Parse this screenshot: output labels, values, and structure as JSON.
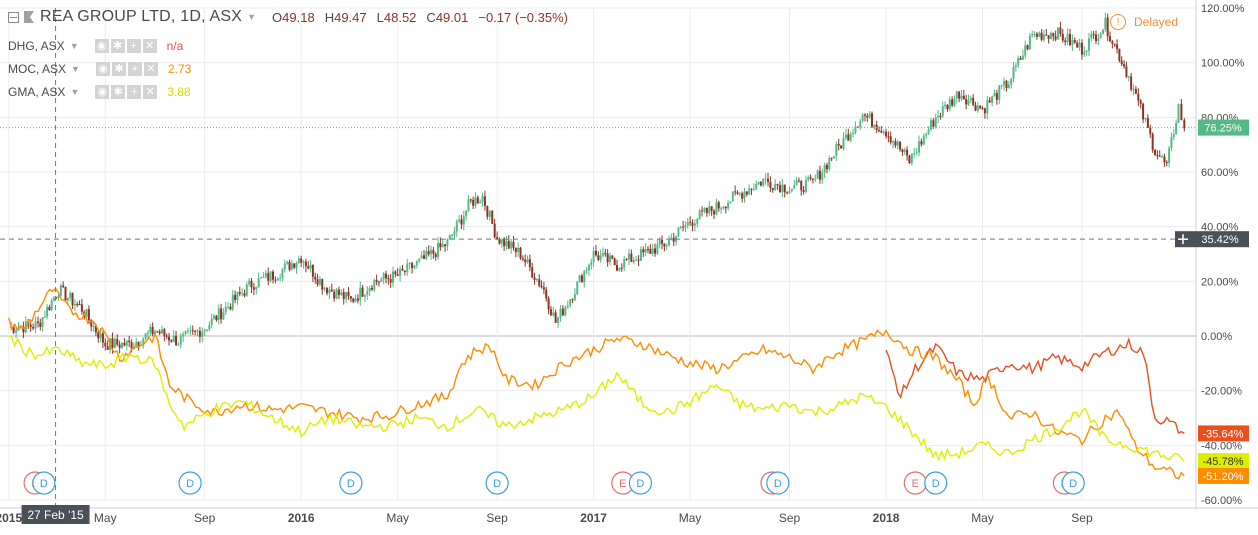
{
  "header": {
    "title": "REA GROUP LTD, 1D, ASX",
    "open_label": "O",
    "open": "49.18",
    "high_label": "H",
    "high": "49.47",
    "low_label": "L",
    "low": "48.52",
    "close_label": "C",
    "close": "49.01",
    "change": "−0.17 (−0.35%)",
    "delayed": "Delayed"
  },
  "legend": [
    {
      "symbol": "DHG, ASX",
      "value": "n/a",
      "color": "#d9534f"
    },
    {
      "symbol": "MOC, ASX",
      "value": "2.73",
      "color": "#ff8c00"
    },
    {
      "symbol": "GMA, ASX",
      "value": "3.88",
      "color": "#d8d800"
    }
  ],
  "crosshair": {
    "date": "27 Feb '15",
    "value": "35.42%"
  },
  "chart_data": {
    "type": "line",
    "title": "REA GROUP LTD, 1D, ASX",
    "y_unit": "%",
    "ylim": [
      -60,
      120
    ],
    "y_ticks": [
      "120.00%",
      "100.00%",
      "80.00%",
      "60.00%",
      "40.00%",
      "20.00%",
      "0.00%",
      "-20.00%",
      "-40.00%",
      "-60.00%"
    ],
    "x_ticks": [
      "2015",
      "May",
      "Sep",
      "2016",
      "May",
      "Sep",
      "2017",
      "May",
      "Sep",
      "2018",
      "May",
      "Sep"
    ],
    "grid": true,
    "series": [
      {
        "name": "REA GROUP LTD",
        "style": "candles",
        "color": "#53b987",
        "down_color": "#8a3324",
        "last_value": "76.25%",
        "points": [
          [
            2015.0,
            3
          ],
          [
            2015.1,
            4
          ],
          [
            2015.17,
            17
          ],
          [
            2015.25,
            10
          ],
          [
            2015.33,
            -3
          ],
          [
            2015.42,
            -3
          ],
          [
            2015.5,
            2
          ],
          [
            2015.58,
            -2
          ],
          [
            2015.67,
            3
          ],
          [
            2015.75,
            11
          ],
          [
            2015.83,
            19
          ],
          [
            2015.92,
            23
          ],
          [
            2016.0,
            29
          ],
          [
            2016.08,
            18
          ],
          [
            2016.17,
            13
          ],
          [
            2016.25,
            20
          ],
          [
            2016.33,
            22
          ],
          [
            2016.42,
            28
          ],
          [
            2016.5,
            34
          ],
          [
            2016.58,
            49
          ],
          [
            2016.62,
            51
          ],
          [
            2016.67,
            36
          ],
          [
            2016.75,
            30
          ],
          [
            2016.83,
            17
          ],
          [
            2016.87,
            5
          ],
          [
            2016.92,
            14
          ],
          [
            2017.0,
            30
          ],
          [
            2017.08,
            26
          ],
          [
            2017.17,
            30
          ],
          [
            2017.25,
            34
          ],
          [
            2017.33,
            42
          ],
          [
            2017.42,
            47
          ],
          [
            2017.5,
            52
          ],
          [
            2017.58,
            57
          ],
          [
            2017.67,
            54
          ],
          [
            2017.75,
            56
          ],
          [
            2017.83,
            68
          ],
          [
            2017.92,
            81
          ],
          [
            2018.0,
            75
          ],
          [
            2018.08,
            64
          ],
          [
            2018.17,
            80
          ],
          [
            2018.25,
            89
          ],
          [
            2018.33,
            83
          ],
          [
            2018.42,
            93
          ],
          [
            2018.5,
            110
          ],
          [
            2018.58,
            111
          ],
          [
            2018.67,
            105
          ],
          [
            2018.75,
            114
          ],
          [
            2018.83,
            95
          ],
          [
            2018.92,
            68
          ],
          [
            2018.96,
            62
          ],
          [
            2019.0,
            84
          ],
          [
            2019.02,
            76
          ]
        ]
      },
      {
        "name": "DHG, ASX",
        "color": "#e8501e",
        "last_value": "-35.64%",
        "points": [
          [
            2018.0,
            -6
          ],
          [
            2018.05,
            -22
          ],
          [
            2018.1,
            -12
          ],
          [
            2018.17,
            -4
          ],
          [
            2018.25,
            -14
          ],
          [
            2018.33,
            -16
          ],
          [
            2018.42,
            -10
          ],
          [
            2018.5,
            -12
          ],
          [
            2018.58,
            -8
          ],
          [
            2018.67,
            -11
          ],
          [
            2018.75,
            -6
          ],
          [
            2018.83,
            -3
          ],
          [
            2018.88,
            -6
          ],
          [
            2018.92,
            -30
          ],
          [
            2018.96,
            -31
          ],
          [
            2019.02,
            -35.6
          ]
        ]
      },
      {
        "name": "MOC, ASX",
        "color": "#ff8c00",
        "last_value": "-51.20%",
        "points": [
          [
            2015.0,
            5
          ],
          [
            2015.05,
            2
          ],
          [
            2015.1,
            10
          ],
          [
            2015.15,
            17
          ],
          [
            2015.2,
            10
          ],
          [
            2015.3,
            5
          ],
          [
            2015.38,
            -8
          ],
          [
            2015.45,
            -3
          ],
          [
            2015.5,
            0
          ],
          [
            2015.55,
            -18
          ],
          [
            2015.62,
            -24
          ],
          [
            2015.7,
            -28
          ],
          [
            2015.8,
            -25
          ],
          [
            2015.9,
            -27
          ],
          [
            2016.0,
            -26
          ],
          [
            2016.1,
            -28
          ],
          [
            2016.2,
            -30
          ],
          [
            2016.3,
            -29
          ],
          [
            2016.4,
            -25
          ],
          [
            2016.5,
            -22
          ],
          [
            2016.55,
            -10
          ],
          [
            2016.6,
            -5
          ],
          [
            2016.65,
            -4
          ],
          [
            2016.7,
            -16
          ],
          [
            2016.8,
            -18
          ],
          [
            2016.9,
            -10
          ],
          [
            2017.0,
            -5
          ],
          [
            2017.08,
            -1
          ],
          [
            2017.17,
            -3
          ],
          [
            2017.25,
            -7
          ],
          [
            2017.33,
            -10
          ],
          [
            2017.42,
            -12
          ],
          [
            2017.5,
            -9
          ],
          [
            2017.58,
            -5
          ],
          [
            2017.67,
            -8
          ],
          [
            2017.75,
            -12
          ],
          [
            2017.83,
            -6
          ],
          [
            2017.92,
            -2
          ],
          [
            2018.0,
            2
          ],
          [
            2018.08,
            -5
          ],
          [
            2018.17,
            -8
          ],
          [
            2018.25,
            -17
          ],
          [
            2018.3,
            -25
          ],
          [
            2018.35,
            -15
          ],
          [
            2018.42,
            -30
          ],
          [
            2018.5,
            -28
          ],
          [
            2018.58,
            -35
          ],
          [
            2018.67,
            -38
          ],
          [
            2018.75,
            -30
          ],
          [
            2018.8,
            -28
          ],
          [
            2018.85,
            -40
          ],
          [
            2018.92,
            -48
          ],
          [
            2019.0,
            -51
          ],
          [
            2019.02,
            -51.2
          ]
        ]
      },
      {
        "name": "GMA, ASX",
        "color": "#ddee00",
        "last_value": "-45.78%",
        "points": [
          [
            2015.0,
            0
          ],
          [
            2015.05,
            -5
          ],
          [
            2015.1,
            -7
          ],
          [
            2015.17,
            -5
          ],
          [
            2015.25,
            -10
          ],
          [
            2015.33,
            -11
          ],
          [
            2015.42,
            -7
          ],
          [
            2015.5,
            -10
          ],
          [
            2015.55,
            -25
          ],
          [
            2015.6,
            -33
          ],
          [
            2015.7,
            -27
          ],
          [
            2015.8,
            -24
          ],
          [
            2015.9,
            -30
          ],
          [
            2016.0,
            -35
          ],
          [
            2016.1,
            -30
          ],
          [
            2016.2,
            -33
          ],
          [
            2016.3,
            -33
          ],
          [
            2016.4,
            -30
          ],
          [
            2016.5,
            -33
          ],
          [
            2016.6,
            -27
          ],
          [
            2016.7,
            -33
          ],
          [
            2016.8,
            -30
          ],
          [
            2016.9,
            -27
          ],
          [
            2017.0,
            -22
          ],
          [
            2017.08,
            -14
          ],
          [
            2017.17,
            -25
          ],
          [
            2017.25,
            -28
          ],
          [
            2017.33,
            -24
          ],
          [
            2017.42,
            -18
          ],
          [
            2017.5,
            -25
          ],
          [
            2017.58,
            -27
          ],
          [
            2017.67,
            -25
          ],
          [
            2017.75,
            -28
          ],
          [
            2017.83,
            -26
          ],
          [
            2017.92,
            -22
          ],
          [
            2018.0,
            -26
          ],
          [
            2018.08,
            -34
          ],
          [
            2018.17,
            -44
          ],
          [
            2018.25,
            -43
          ],
          [
            2018.33,
            -40
          ],
          [
            2018.42,
            -43
          ],
          [
            2018.5,
            -38
          ],
          [
            2018.58,
            -34
          ],
          [
            2018.67,
            -27
          ],
          [
            2018.75,
            -38
          ],
          [
            2018.83,
            -40
          ],
          [
            2018.92,
            -43
          ],
          [
            2019.0,
            -45
          ],
          [
            2019.02,
            -45.8
          ]
        ]
      }
    ],
    "events": [
      {
        "type": "E",
        "x": 2015.09,
        "color": "#e07070"
      },
      {
        "type": "D",
        "x": 2015.12,
        "color": "#3aa0dd"
      },
      {
        "type": "D",
        "x": 2015.62,
        "color": "#3aa0dd"
      },
      {
        "type": "D",
        "x": 2016.17,
        "color": "#3aa0dd"
      },
      {
        "type": "D",
        "x": 2016.67,
        "color": "#3aa0dd"
      },
      {
        "type": "E",
        "x": 2017.1,
        "color": "#e07070"
      },
      {
        "type": "D",
        "x": 2017.16,
        "color": "#3aa0dd"
      },
      {
        "type": "E",
        "x": 2017.61,
        "color": "#e07070"
      },
      {
        "type": "D",
        "x": 2017.63,
        "color": "#3aa0dd"
      },
      {
        "type": "E",
        "x": 2018.1,
        "color": "#e07070"
      },
      {
        "type": "D",
        "x": 2018.17,
        "color": "#3aa0dd"
      },
      {
        "type": "E",
        "x": 2018.61,
        "color": "#e07070"
      },
      {
        "type": "D",
        "x": 2018.64,
        "color": "#3aa0dd"
      }
    ],
    "reference_line": {
      "value": 76.25,
      "color": "#53b987"
    },
    "crosshair": {
      "x": 2015.16,
      "y": 35.42
    }
  }
}
